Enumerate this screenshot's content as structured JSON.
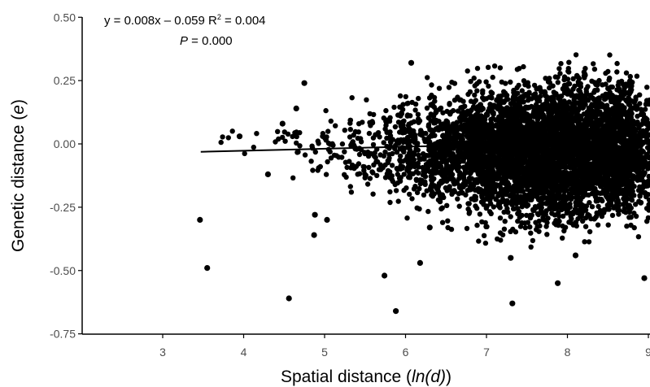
{
  "chart_data": {
    "type": "scatter",
    "x_ticks": [
      "3",
      "4",
      "5",
      "6",
      "7",
      "8",
      "9"
    ],
    "y_ticks": [
      "-0.75",
      "-0.50",
      "-0.25",
      "0.00",
      "0.25",
      "0.50"
    ],
    "xlabel_prefix": "Spatial distance (",
    "xlabel_italic": "ln(d)",
    "xlabel_suffix": ")",
    "ylabel_prefix": "Genetic distance (",
    "ylabel_italic": "e",
    "ylabel_suffix": ")",
    "xlim": [
      2.0,
      9.0
    ],
    "ylim": [
      -0.75,
      0.5
    ],
    "grid": false,
    "equation": "y = 0.008x – 0.059 R",
    "r2_sup": "2",
    "r2_value": " = 0.004",
    "p_label": "P",
    "p_value": " = 0.000",
    "trend_line": {
      "slope": 0.008,
      "intercept": -0.059,
      "x_start": 3.47,
      "x_end": 9.0
    },
    "outliers": [
      {
        "x": 3.46,
        "y": -0.3
      },
      {
        "x": 3.55,
        "y": -0.49
      },
      {
        "x": 3.95,
        "y": 0.03
      },
      {
        "x": 4.3,
        "y": -0.12
      },
      {
        "x": 4.48,
        "y": 0.08
      },
      {
        "x": 4.56,
        "y": -0.61
      },
      {
        "x": 4.65,
        "y": 0.14
      },
      {
        "x": 4.75,
        "y": 0.24
      },
      {
        "x": 4.87,
        "y": -0.36
      },
      {
        "x": 4.88,
        "y": -0.28
      },
      {
        "x": 5.03,
        "y": -0.3
      },
      {
        "x": 5.74,
        "y": -0.52
      },
      {
        "x": 5.88,
        "y": -0.66
      },
      {
        "x": 6.07,
        "y": 0.32
      },
      {
        "x": 6.18,
        "y": -0.47
      },
      {
        "x": 6.3,
        "y": -0.33
      },
      {
        "x": 7.3,
        "y": -0.45
      },
      {
        "x": 7.32,
        "y": -0.63
      },
      {
        "x": 7.88,
        "y": -0.55
      },
      {
        "x": 8.1,
        "y": -0.44
      },
      {
        "x": 8.95,
        "y": -0.53
      }
    ],
    "density_bands": [
      {
        "x": 4.2,
        "lo": -0.1,
        "hi": 0.1,
        "n": 10
      },
      {
        "x": 4.8,
        "lo": -0.2,
        "hi": 0.18,
        "n": 25
      },
      {
        "x": 5.3,
        "lo": -0.26,
        "hi": 0.2,
        "n": 60
      },
      {
        "x": 5.8,
        "lo": -0.3,
        "hi": 0.25,
        "n": 140
      },
      {
        "x": 6.3,
        "lo": -0.33,
        "hi": 0.3,
        "n": 320
      },
      {
        "x": 6.8,
        "lo": -0.38,
        "hi": 0.32,
        "n": 650
      },
      {
        "x": 7.3,
        "lo": -0.4,
        "hi": 0.33,
        "n": 1000
      },
      {
        "x": 7.8,
        "lo": -0.42,
        "hi": 0.34,
        "n": 1200
      },
      {
        "x": 8.3,
        "lo": -0.4,
        "hi": 0.36,
        "n": 1300
      },
      {
        "x": 8.8,
        "lo": -0.38,
        "hi": 0.33,
        "n": 1100
      }
    ]
  }
}
